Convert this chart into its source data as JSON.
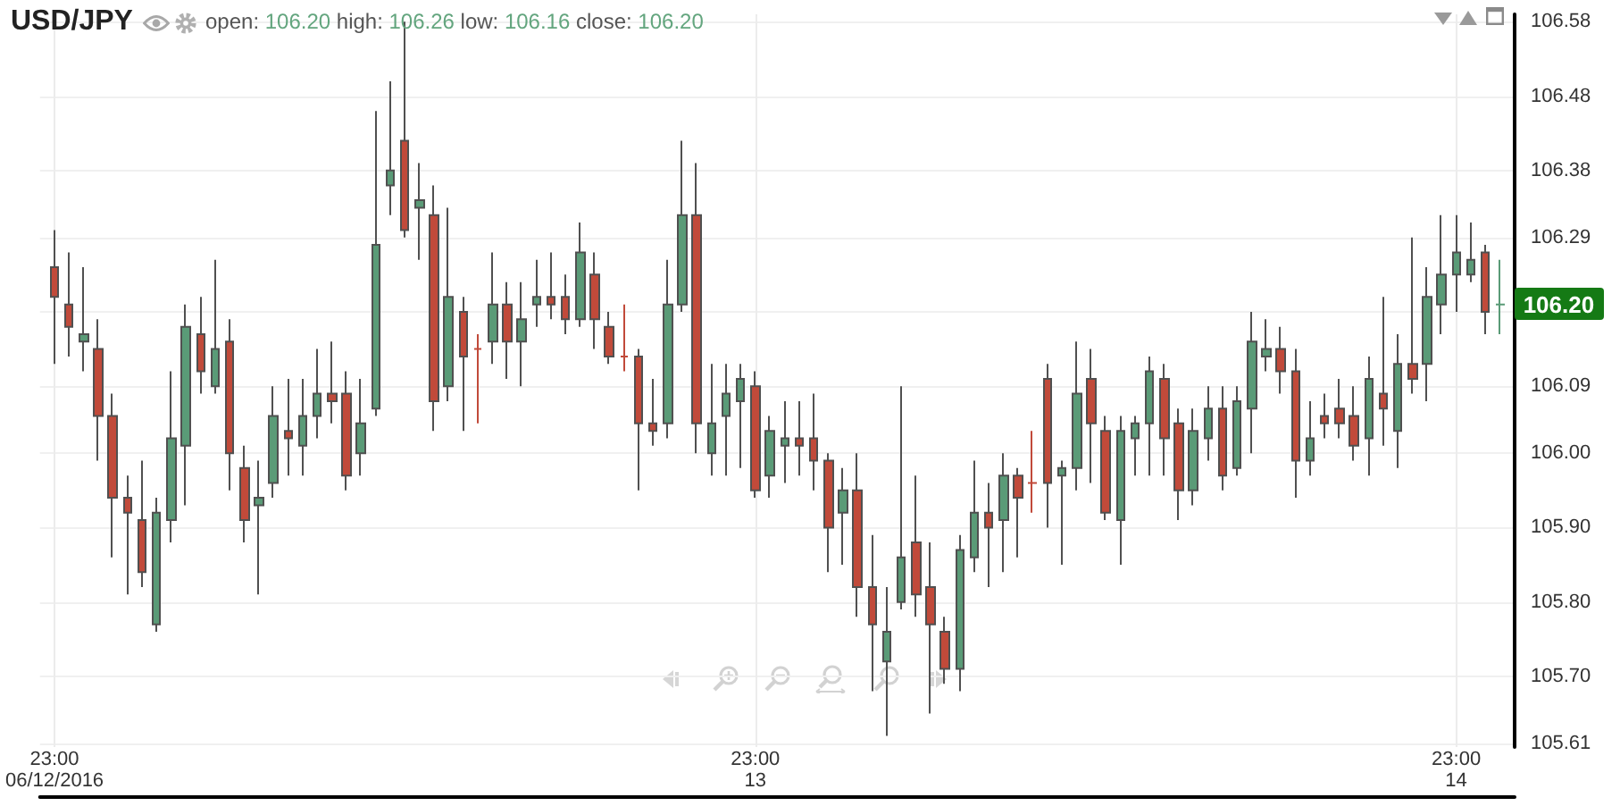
{
  "chart_data": {
    "type": "candlestick",
    "title": "USD/JPY",
    "subtitle": "open: 106.20 high: 106.26 low: 106.16 close: 106.20",
    "x": [
      "2016-06-12T23:00",
      "2016-06-12T23:30",
      "2016-06-13T00:00",
      "2016-06-13T00:30",
      "2016-06-13T01:00",
      "2016-06-13T01:30",
      "2016-06-13T02:00",
      "2016-06-13T02:30",
      "2016-06-13T03:00",
      "2016-06-13T03:30",
      "2016-06-13T04:00",
      "2016-06-13T04:30",
      "2016-06-13T05:00",
      "2016-06-13T05:30",
      "2016-06-13T06:00",
      "2016-06-13T06:30",
      "2016-06-13T07:00",
      "2016-06-13T07:30",
      "2016-06-13T08:00",
      "2016-06-13T08:30",
      "2016-06-13T09:00",
      "2016-06-13T09:30",
      "2016-06-13T10:00",
      "2016-06-13T10:30",
      "2016-06-13T11:00",
      "2016-06-13T11:30",
      "2016-06-13T12:00",
      "2016-06-13T12:30",
      "2016-06-13T13:00",
      "2016-06-13T13:30",
      "2016-06-13T14:00",
      "2016-06-13T14:30",
      "2016-06-13T15:00",
      "2016-06-13T15:30",
      "2016-06-13T16:00",
      "2016-06-13T16:30",
      "2016-06-13T17:00",
      "2016-06-13T17:30",
      "2016-06-13T18:00",
      "2016-06-13T18:30",
      "2016-06-13T19:00",
      "2016-06-13T19:30",
      "2016-06-13T20:00",
      "2016-06-13T20:30",
      "2016-06-13T21:00",
      "2016-06-13T21:30",
      "2016-06-13T22:00",
      "2016-06-13T22:30",
      "2016-06-13T23:00",
      "2016-06-13T23:30",
      "2016-06-14T00:00",
      "2016-06-14T00:30",
      "2016-06-14T01:00",
      "2016-06-14T01:30",
      "2016-06-14T02:00",
      "2016-06-14T02:30",
      "2016-06-14T03:00",
      "2016-06-14T03:30",
      "2016-06-14T04:00",
      "2016-06-14T04:30",
      "2016-06-14T05:00",
      "2016-06-14T05:30",
      "2016-06-14T06:00",
      "2016-06-14T06:30",
      "2016-06-14T07:00",
      "2016-06-14T07:30",
      "2016-06-14T08:00",
      "2016-06-14T08:30",
      "2016-06-14T09:00",
      "2016-06-14T09:30",
      "2016-06-14T10:00",
      "2016-06-14T10:30",
      "2016-06-14T11:00",
      "2016-06-14T11:30",
      "2016-06-14T12:00",
      "2016-06-14T12:30",
      "2016-06-14T13:00",
      "2016-06-14T13:30",
      "2016-06-14T14:00",
      "2016-06-14T14:30",
      "2016-06-14T15:00",
      "2016-06-14T15:30",
      "2016-06-14T16:00",
      "2016-06-14T16:30",
      "2016-06-14T17:00",
      "2016-06-14T17:30",
      "2016-06-14T18:00",
      "2016-06-14T18:30",
      "2016-06-14T19:00",
      "2016-06-14T19:30",
      "2016-06-14T20:00",
      "2016-06-14T20:30",
      "2016-06-14T21:00",
      "2016-06-14T21:30",
      "2016-06-14T22:00",
      "2016-06-14T22:30",
      "2016-06-14T23:00",
      "2016-06-14T23:30",
      "2016-06-15T00:00",
      "2016-06-15T00:30"
    ],
    "ohlc": [
      [
        106.25,
        106.3,
        106.12,
        106.21
      ],
      [
        106.2,
        106.27,
        106.13,
        106.17
      ],
      [
        106.15,
        106.25,
        106.11,
        106.16
      ],
      [
        106.14,
        106.18,
        105.99,
        106.05
      ],
      [
        106.05,
        106.08,
        105.86,
        105.94
      ],
      [
        105.94,
        105.97,
        105.81,
        105.92
      ],
      [
        105.91,
        105.99,
        105.82,
        105.84
      ],
      [
        105.77,
        105.94,
        105.76,
        105.92
      ],
      [
        105.91,
        106.11,
        105.88,
        106.02
      ],
      [
        106.01,
        106.2,
        105.93,
        106.17
      ],
      [
        106.16,
        106.21,
        106.08,
        106.11
      ],
      [
        106.09,
        106.26,
        106.08,
        106.14
      ],
      [
        106.15,
        106.18,
        105.95,
        106.0
      ],
      [
        105.98,
        106.01,
        105.88,
        105.91
      ],
      [
        105.93,
        105.99,
        105.81,
        105.94
      ],
      [
        105.96,
        106.09,
        105.94,
        106.05
      ],
      [
        106.03,
        106.1,
        105.97,
        106.02
      ],
      [
        106.01,
        106.1,
        105.97,
        106.05
      ],
      [
        106.05,
        106.14,
        106.02,
        106.08
      ],
      [
        106.08,
        106.15,
        106.04,
        106.07
      ],
      [
        106.08,
        106.11,
        105.95,
        105.97
      ],
      [
        106.0,
        106.1,
        105.97,
        106.04
      ],
      [
        106.06,
        106.46,
        106.05,
        106.28
      ],
      [
        106.36,
        106.5,
        106.32,
        106.38
      ],
      [
        106.42,
        106.58,
        106.29,
        106.3
      ],
      [
        106.33,
        106.39,
        106.26,
        106.34
      ],
      [
        106.32,
        106.36,
        106.03,
        106.07
      ],
      [
        106.09,
        106.33,
        106.07,
        106.21
      ],
      [
        106.19,
        106.21,
        106.03,
        106.13
      ],
      [
        106.14,
        106.16,
        106.04,
        106.14
      ],
      [
        106.15,
        106.27,
        106.12,
        106.2
      ],
      [
        106.2,
        106.23,
        106.1,
        106.15
      ],
      [
        106.15,
        106.23,
        106.09,
        106.18
      ],
      [
        106.2,
        106.26,
        106.17,
        106.21
      ],
      [
        106.21,
        106.27,
        106.18,
        106.2
      ],
      [
        106.21,
        106.24,
        106.16,
        106.18
      ],
      [
        106.18,
        106.31,
        106.17,
        106.27
      ],
      [
        106.24,
        106.27,
        106.14,
        106.18
      ],
      [
        106.17,
        106.19,
        106.12,
        106.13
      ],
      [
        106.13,
        106.2,
        106.11,
        106.13
      ],
      [
        106.13,
        106.14,
        105.95,
        106.04
      ],
      [
        106.04,
        106.1,
        106.01,
        106.03
      ],
      [
        106.04,
        106.26,
        106.02,
        106.2
      ],
      [
        106.2,
        106.42,
        106.19,
        106.32
      ],
      [
        106.32,
        106.39,
        106.0,
        106.04
      ],
      [
        106.0,
        106.12,
        105.97,
        106.04
      ],
      [
        106.05,
        106.12,
        105.97,
        106.08
      ],
      [
        106.07,
        106.12,
        105.98,
        106.1
      ],
      [
        106.09,
        106.11,
        105.94,
        105.95
      ],
      [
        105.97,
        106.05,
        105.94,
        106.03
      ],
      [
        106.01,
        106.07,
        105.96,
        106.02
      ],
      [
        106.02,
        106.07,
        105.97,
        106.01
      ],
      [
        106.02,
        106.08,
        105.95,
        105.99
      ],
      [
        105.99,
        106.0,
        105.84,
        105.9
      ],
      [
        105.92,
        105.98,
        105.85,
        105.95
      ],
      [
        105.95,
        106.0,
        105.78,
        105.82
      ],
      [
        105.82,
        105.89,
        105.68,
        105.77
      ],
      [
        105.72,
        105.82,
        105.62,
        105.76
      ],
      [
        105.8,
        106.09,
        105.79,
        105.86
      ],
      [
        105.88,
        105.97,
        105.78,
        105.81
      ],
      [
        105.82,
        105.88,
        105.65,
        105.77
      ],
      [
        105.76,
        105.78,
        105.69,
        105.71
      ],
      [
        105.71,
        105.89,
        105.68,
        105.87
      ],
      [
        105.86,
        105.99,
        105.84,
        105.92
      ],
      [
        105.92,
        105.96,
        105.82,
        105.9
      ],
      [
        105.91,
        106.0,
        105.84,
        105.97
      ],
      [
        105.97,
        105.98,
        105.86,
        105.94
      ],
      [
        105.96,
        106.03,
        105.92,
        105.96
      ],
      [
        106.1,
        106.12,
        105.9,
        105.96
      ],
      [
        105.97,
        105.99,
        105.85,
        105.98
      ],
      [
        105.98,
        106.15,
        105.95,
        106.08
      ],
      [
        106.1,
        106.14,
        105.96,
        106.04
      ],
      [
        106.03,
        106.05,
        105.91,
        105.92
      ],
      [
        105.91,
        106.05,
        105.85,
        106.03
      ],
      [
        106.02,
        106.05,
        105.97,
        106.04
      ],
      [
        106.04,
        106.13,
        105.97,
        106.11
      ],
      [
        106.1,
        106.12,
        105.97,
        106.02
      ],
      [
        106.04,
        106.06,
        105.91,
        105.95
      ],
      [
        105.95,
        106.06,
        105.93,
        106.03
      ],
      [
        106.02,
        106.09,
        105.99,
        106.06
      ],
      [
        106.06,
        106.09,
        105.95,
        105.97
      ],
      [
        105.98,
        106.09,
        105.97,
        106.07
      ],
      [
        106.06,
        106.19,
        106.0,
        106.15
      ],
      [
        106.13,
        106.18,
        106.11,
        106.14
      ],
      [
        106.14,
        106.17,
        106.08,
        106.11
      ],
      [
        106.11,
        106.14,
        105.94,
        105.99
      ],
      [
        105.99,
        106.07,
        105.97,
        106.02
      ],
      [
        106.05,
        106.08,
        106.02,
        106.04
      ],
      [
        106.06,
        106.1,
        106.02,
        106.04
      ],
      [
        106.05,
        106.09,
        105.99,
        106.01
      ],
      [
        106.02,
        106.13,
        105.97,
        106.1
      ],
      [
        106.08,
        106.21,
        106.01,
        106.06
      ],
      [
        106.03,
        106.16,
        105.98,
        106.12
      ],
      [
        106.12,
        106.29,
        106.08,
        106.1
      ],
      [
        106.12,
        106.25,
        106.07,
        106.21
      ],
      [
        106.2,
        106.32,
        106.16,
        106.24
      ],
      [
        106.24,
        106.32,
        106.19,
        106.27
      ],
      [
        106.24,
        106.31,
        106.23,
        106.26
      ],
      [
        106.27,
        106.28,
        106.16,
        106.19
      ],
      [
        106.2,
        106.26,
        106.16,
        106.2
      ]
    ],
    "colors": [
      "#c14a3a",
      "#c14a3a",
      "#5a9b77",
      "#c14a3a",
      "#c14a3a",
      "#c14a3a",
      "#c14a3a",
      "#5a9b77",
      "#5a9b77",
      "#5a9b77",
      "#c14a3a",
      "#5a9b77",
      "#c14a3a",
      "#c14a3a",
      "#5a9b77",
      "#5a9b77",
      "#c14a3a",
      "#5a9b77",
      "#5a9b77",
      "#c14a3a",
      "#c14a3a",
      "#5a9b77",
      "#5a9b77",
      "#5a9b77",
      "#c14a3a",
      "#5a9b77",
      "#c14a3a",
      "#5a9b77",
      "#c14a3a",
      "#c14a3a",
      "#5a9b77",
      "#c14a3a",
      "#5a9b77",
      "#5a9b77",
      "#c14a3a",
      "#c14a3a",
      "#5a9b77",
      "#c14a3a",
      "#c14a3a",
      "#c14a3a",
      "#c14a3a",
      "#c14a3a",
      "#5a9b77",
      "#5a9b77",
      "#c14a3a",
      "#5a9b77",
      "#5a9b77",
      "#5a9b77",
      "#c14a3a",
      "#5a9b77",
      "#5a9b77",
      "#c14a3a",
      "#c14a3a",
      "#c14a3a",
      "#5a9b77",
      "#c14a3a",
      "#c14a3a",
      "#5a9b77",
      "#5a9b77",
      "#c14a3a",
      "#c14a3a",
      "#c14a3a",
      "#5a9b77",
      "#5a9b77",
      "#c14a3a",
      "#5a9b77",
      "#c14a3a",
      "#c14a3a",
      "#c14a3a",
      "#5a9b77",
      "#5a9b77",
      "#c14a3a",
      "#c14a3a",
      "#5a9b77",
      "#5a9b77",
      "#5a9b77",
      "#c14a3a",
      "#c14a3a",
      "#5a9b77",
      "#5a9b77",
      "#c14a3a",
      "#5a9b77",
      "#5a9b77",
      "#5a9b77",
      "#c14a3a",
      "#c14a3a",
      "#5a9b77",
      "#c14a3a",
      "#c14a3a",
      "#c14a3a",
      "#5a9b77",
      "#c14a3a",
      "#5a9b77",
      "#c14a3a",
      "#5a9b77",
      "#5a9b77",
      "#5a9b77",
      "#5a9b77",
      "#c14a3a",
      "#5a9b77"
    ],
    "xlim": [
      "2016-06-12T22:30",
      "2016-06-15T01:00"
    ],
    "xticks": [
      {
        "value": "2016-06-12T23:00",
        "label": "23:00\n06/12/2016"
      },
      {
        "value": "2016-06-13T23:00",
        "label": "23:00\n13"
      },
      {
        "value": "2016-06-14T23:00",
        "label": "23:00\n14"
      }
    ],
    "ylim": [
      105.605,
      106.59
    ],
    "yticks": [
      105.61,
      {
        "value": 105.7,
        "label": "105.70"
      },
      {
        "value": 105.8,
        "label": "105.80"
      },
      {
        "value": 105.9,
        "label": "105.90"
      },
      {
        "value": 106,
        "label": "106.00"
      },
      106.09,
      {
        "value": 106.19,
        "label": null
      },
      106.29,
      106.38,
      106.48,
      106.58
    ],
    "grid": true,
    "annotations": [
      {
        "text": "106.20",
        "x": "2016-06-15T00:30",
        "y": 106.2
      }
    ]
  }
}
